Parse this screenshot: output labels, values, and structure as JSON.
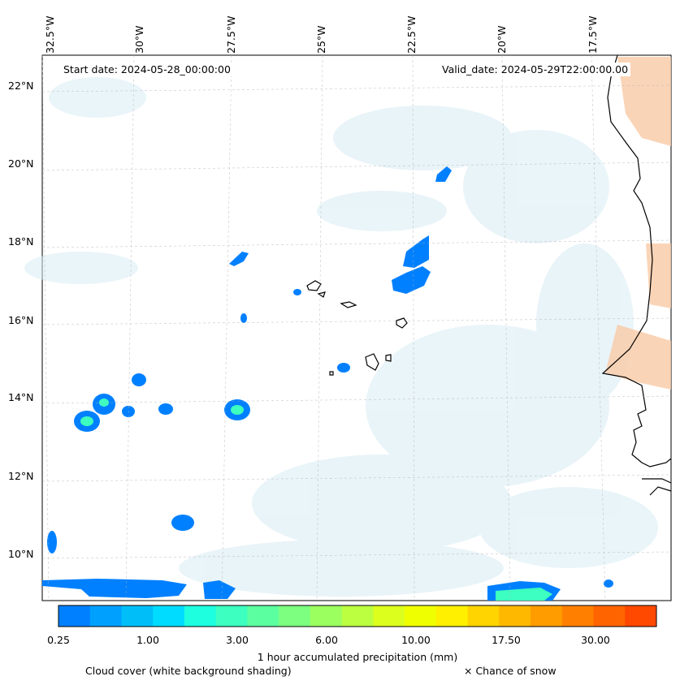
{
  "map": {
    "start_date": "Start date: 2024-05-28_00:00:00",
    "valid_date": "Valid_date: 2024-05-29T22:00:00.00",
    "lon_ticks": [
      "32.5°W",
      "30°W",
      "27.5°W",
      "25°W",
      "22.5°W",
      "20°W",
      "17.5°W"
    ],
    "lat_ticks": [
      "22°N",
      "20°N",
      "18°N",
      "16°N",
      "14°N",
      "12°N",
      "10°N"
    ]
  },
  "colorbar": {
    "title": "1 hour accumulated precipitation (mm)",
    "tick_labels": [
      "0.25",
      "1.00",
      "3.00",
      "6.00",
      "10.00",
      "17.50",
      "30.00"
    ],
    "colors": [
      "#0080ff",
      "#00a0ff",
      "#00bff8",
      "#00dcff",
      "#1effe0",
      "#3dffbf",
      "#5cffa0",
      "#7dff80",
      "#9cff60",
      "#bcff40",
      "#dcff1e",
      "#f0ff00",
      "#fff000",
      "#ffd400",
      "#ffb800",
      "#ff9c00",
      "#ff8000",
      "#ff6400",
      "#ff4800"
    ]
  },
  "legend": {
    "cloud_cover": "Cloud cover (white background shading)",
    "snow": "× Chance of snow"
  },
  "colors": {
    "precip_light": "#0080ff",
    "precip_mid": "#3dffbf",
    "cloud": "#d8ecf4",
    "land_warm": "#f9c9a5"
  }
}
